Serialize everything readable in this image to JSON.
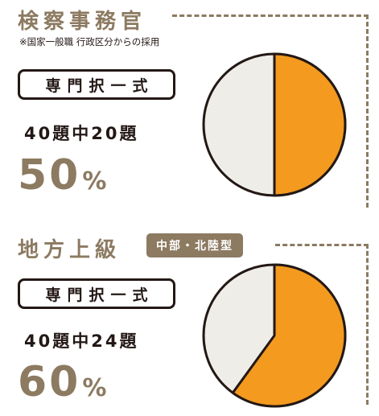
{
  "section1": {
    "title": "検察事務官",
    "note": "※国家一般職 行政区分からの採用",
    "badge": "専門択一式",
    "count": "40題中20題",
    "percent_number": "50",
    "percent_unit": "%",
    "fraction": 0.5
  },
  "section2": {
    "title": "地方上級",
    "tag": "中部・北陸型",
    "badge": "専門択一式",
    "count": "40題中24題",
    "percent_number": "60",
    "percent_unit": "%",
    "fraction": 0.6
  },
  "colors": {
    "accent": "#8c7a61",
    "highlight": "#f39a1f",
    "remainder": "#efede8",
    "ink": "#231815"
  }
}
